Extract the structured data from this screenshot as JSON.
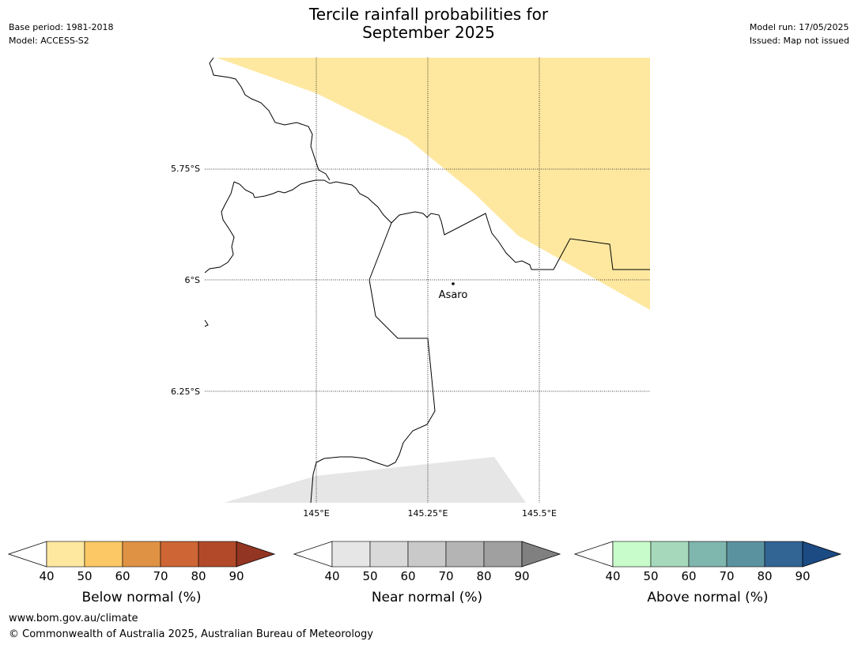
{
  "title_line1": "Tercile rainfall probabilities for",
  "title_line2": "September 2025",
  "header_left": [
    "Base period: 1981-2018",
    "Model: ACCESS-S2"
  ],
  "header_right": [
    "Model run: 17/05/2025",
    "Issued: Map not issued"
  ],
  "map": {
    "lat_labels": [
      "5.75°S",
      "6°S",
      "6.25°S"
    ],
    "lon_labels": [
      "145°E",
      "145.25°E",
      "145.5°E"
    ],
    "place": "Asaro"
  },
  "legends": [
    {
      "title": "Below normal (%)",
      "ticks": [
        "40",
        "50",
        "60",
        "70",
        "80",
        "90"
      ],
      "colors": [
        "#ffffff",
        "#fee8a0",
        "#fcc865",
        "#e09244",
        "#cd6634",
        "#b24a2a",
        "#933523"
      ]
    },
    {
      "title": "Near normal (%)",
      "ticks": [
        "40",
        "50",
        "60",
        "70",
        "80",
        "90"
      ],
      "colors": [
        "#ffffff",
        "#e6e6e6",
        "#d9d9d9",
        "#c9c9c9",
        "#b4b4b4",
        "#a0a0a0",
        "#808080"
      ]
    },
    {
      "title": "Above normal (%)",
      "ticks": [
        "40",
        "50",
        "60",
        "70",
        "80",
        "90"
      ],
      "colors": [
        "#ffffff",
        "#c9fccb",
        "#a6d9bb",
        "#7fb6ae",
        "#5b92a0",
        "#326494",
        "#1c4b84"
      ]
    }
  ],
  "footer": {
    "url": "www.bom.gov.au/climate",
    "copyright": "© Commonwealth of Australia 2025, Australian Bureau of Meteorology"
  }
}
